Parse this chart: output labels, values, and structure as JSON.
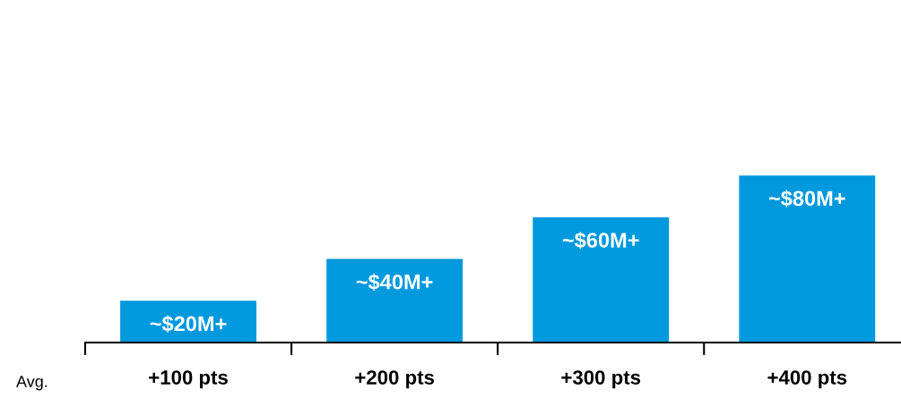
{
  "chart_data": {
    "type": "bar",
    "categories": [
      "+100 pts",
      "+200 pts",
      "+300 pts",
      "+400 pts"
    ],
    "values": [
      20,
      40,
      60,
      80
    ],
    "value_labels": [
      "~$20M+",
      "~$40M+",
      "~$60M+",
      "~$80M+"
    ],
    "color": "#0099dd",
    "annotations": [
      "Avg."
    ]
  }
}
